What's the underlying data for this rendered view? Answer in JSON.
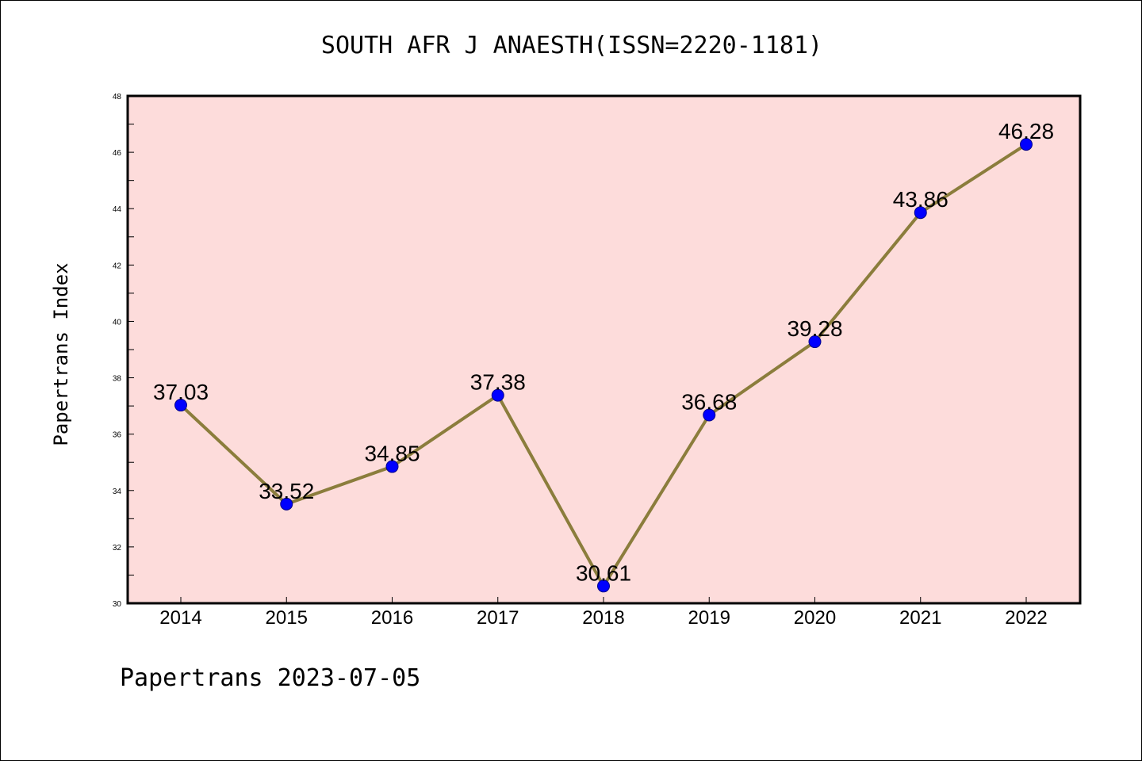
{
  "chart_data": {
    "type": "line",
    "title": "SOUTH AFR J ANAESTH(ISSN=2220-1181)",
    "ylabel": "Papertrans Index",
    "xlabel": "",
    "footer": "Papertrans 2023-07-05",
    "categories": [
      "2014",
      "2015",
      "2016",
      "2017",
      "2018",
      "2019",
      "2020",
      "2021",
      "2022"
    ],
    "values": [
      37.03,
      33.52,
      34.85,
      37.38,
      30.61,
      36.68,
      39.28,
      43.86,
      46.28
    ],
    "data_labels": [
      "37.03",
      "33.52",
      "34.85",
      "37.38",
      "30.61",
      "36.68",
      "39.28",
      "43.86",
      "46.28"
    ],
    "ylim": [
      30,
      48
    ],
    "yticks": [
      30,
      32,
      34,
      36,
      38,
      40,
      42,
      44,
      46,
      48
    ],
    "ytick_labels": [
      "30",
      "32",
      "34",
      "36",
      "38",
      "40",
      "42",
      "44",
      "46",
      "48"
    ],
    "grid": false,
    "legend": "none",
    "colors": {
      "plot_background": "#fddcdb",
      "line": "#8b7d3c",
      "marker": "#0000ff",
      "marker_edge": "#00008b",
      "axes": "#000000"
    }
  }
}
